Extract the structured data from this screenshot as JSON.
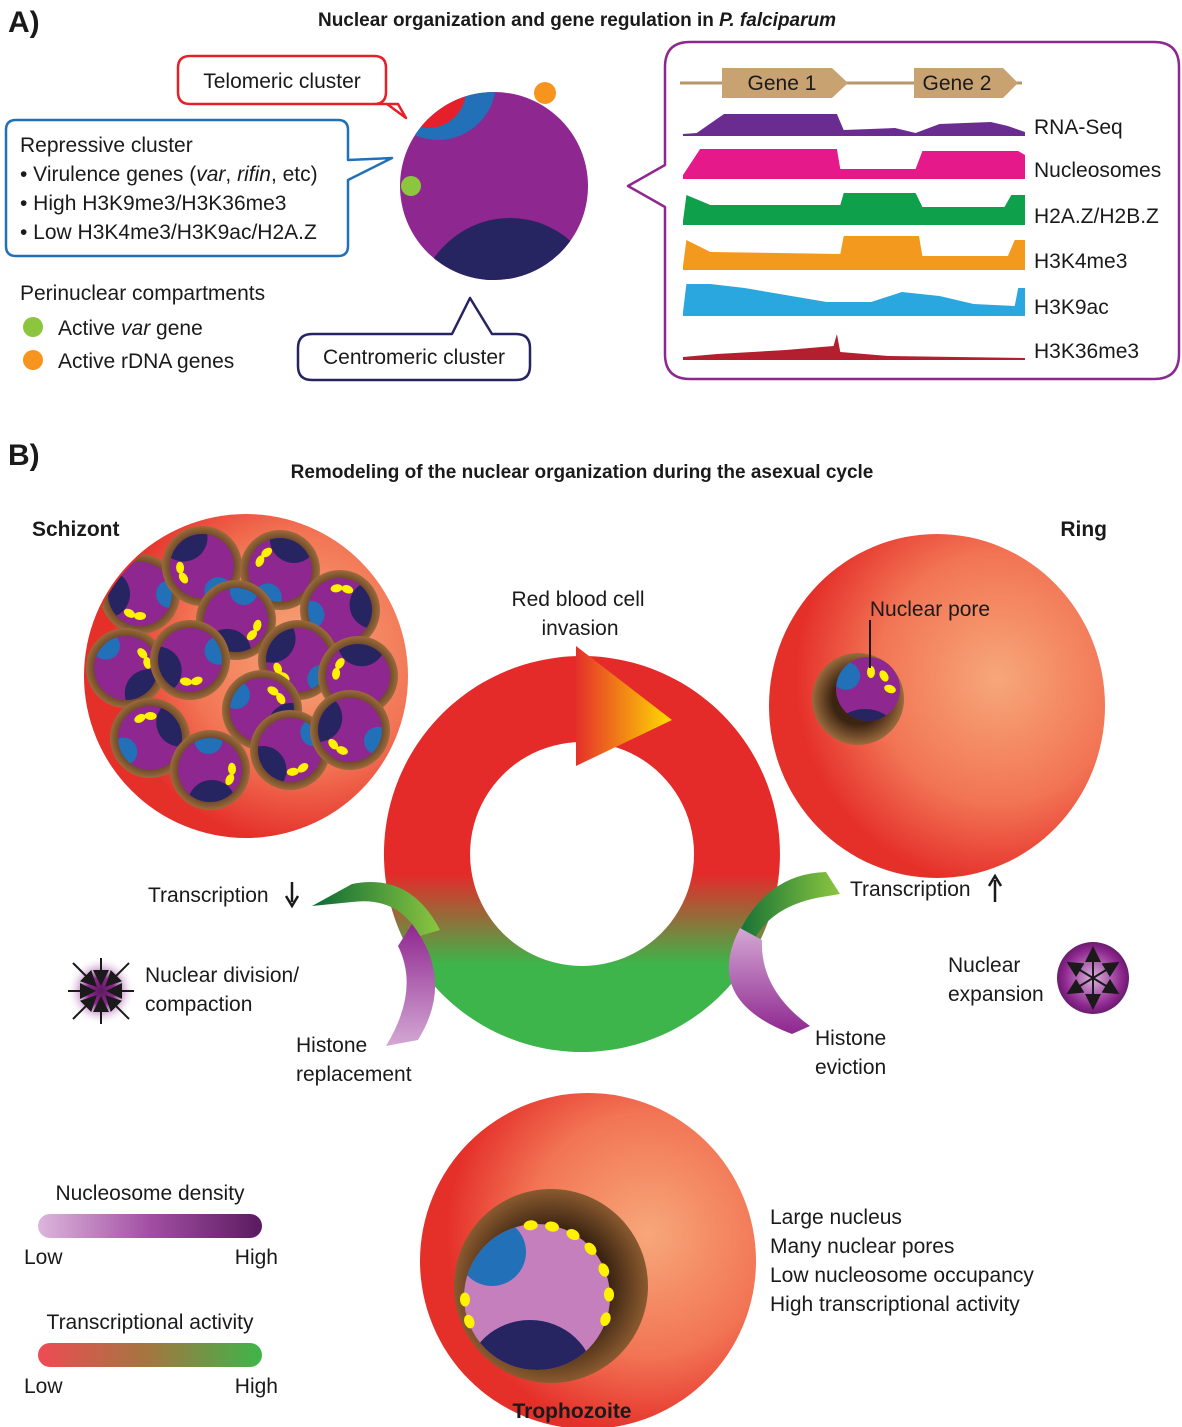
{
  "panel_a": {
    "letter": "A)",
    "title_prefix": "Nuclear organization and gene regulation in ",
    "title_italic": "P. falciparum",
    "telomeric_label": "Telomeric cluster",
    "repressive": {
      "title": "Repressive cluster",
      "line1_prefix": "• Virulence genes (",
      "line1_var": "var",
      "line1_sep": ", ",
      "line1_rifin": "rifin",
      "line1_suffix": ", etc)",
      "line2": "• High H3K9me3/H3K36me3",
      "line3": "• Low H3K4me3/H3K9ac/H2A.Z"
    },
    "centromeric_label": "Centromeric cluster",
    "perinuclear": {
      "title": "Perinuclear compartments",
      "active_var_prefix": "Active ",
      "active_var_italic": "var",
      "active_var_suffix": " gene",
      "active_rdna": "Active rDNA genes"
    },
    "genes": [
      "Gene 1",
      "Gene 2"
    ],
    "tracks": [
      {
        "name": "RNA-Seq",
        "color": "#6a2c91"
      },
      {
        "name": "Nucleosomes",
        "color": "#e6198a"
      },
      {
        "name": "H2A.Z/H2B.Z",
        "color": "#0fa04b"
      },
      {
        "name": "H3K4me3",
        "color": "#f39a1e"
      },
      {
        "name": "H3K9ac",
        "color": "#2aa7df"
      },
      {
        "name": "H3K36me3",
        "color": "#b41f30"
      }
    ]
  },
  "panel_b": {
    "letter": "B)",
    "title": "Remodeling of the nuclear organization during the asexual cycle",
    "schizont": "Schizont",
    "ring": "Ring",
    "trophozoite": "Trophozoite",
    "invasion_line1": "Red blood cell",
    "invasion_line2": "invasion",
    "nuclear_pore": "Nuclear pore",
    "transcription_down": "Transcription",
    "transcription_up": "Transcription",
    "nuclear_division_line1": "Nuclear division/",
    "nuclear_division_line2": "compaction",
    "histone_replacement_line1": "Histone",
    "histone_replacement_line2": "replacement",
    "histone_eviction_line1": "Histone",
    "histone_eviction_line2": "eviction",
    "nuclear_expansion_line1": "Nuclear",
    "nuclear_expansion_line2": "expansion",
    "troph_features": [
      "Large nucleus",
      "Many nuclear pores",
      "Low nucleosome occupancy",
      "High transcriptional activity"
    ]
  },
  "legends": {
    "nucleosome_density": {
      "title": "Nucleosome density",
      "low": "Low",
      "high": "High"
    },
    "transcriptional_activity": {
      "title": "Transcriptional activity",
      "low": "Low",
      "high": "High"
    }
  },
  "colors": {
    "nucleus_purple": "#8e278f",
    "repressive_blue": "#2170b8",
    "telomeric_red": "#e5202a",
    "centromere_navy": "#262461",
    "active_var_green": "#8cc63f",
    "rdna_orange": "#f7941d",
    "pore_yellow": "#fff200"
  }
}
